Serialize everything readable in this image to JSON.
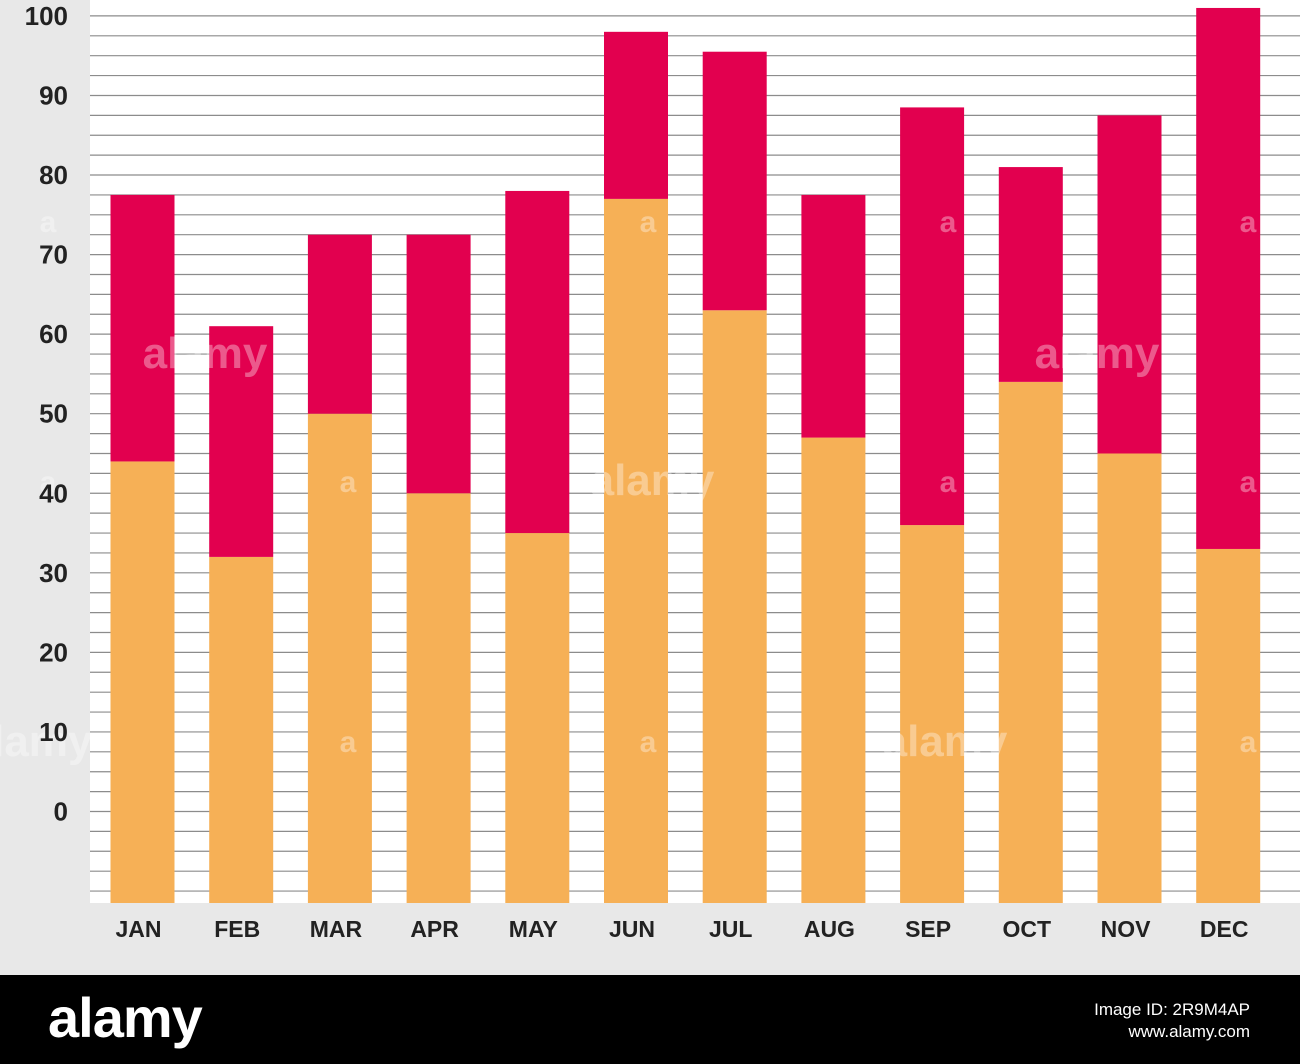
{
  "chart_data": {
    "type": "bar",
    "stacked": true,
    "categories": [
      "JAN",
      "FEB",
      "MAR",
      "APR",
      "MAY",
      "JUN",
      "JUL",
      "AUG",
      "SEP",
      "OCT",
      "NOV",
      "DEC"
    ],
    "series": [
      {
        "color": "#F6B056",
        "values": [
          44,
          32,
          50,
          40,
          35,
          77,
          63,
          47,
          36,
          54,
          45,
          33
        ]
      },
      {
        "color": "#E2004F",
        "values": [
          33.5,
          29,
          22.5,
          32.5,
          43,
          21,
          32.5,
          30.5,
          52.5,
          27,
          42.5,
          68
        ]
      }
    ],
    "yticks": [
      0,
      10,
      20,
      30,
      40,
      50,
      60,
      70,
      80,
      90,
      100
    ],
    "ylim": [
      -11.5,
      102
    ],
    "minor_grid_step": 2.5,
    "grid": true,
    "legend": "none",
    "title": "",
    "xlabel": "",
    "ylabel": ""
  },
  "watermark": {
    "word": "alamy",
    "letter": "a"
  },
  "footer": {
    "logo": "alamy",
    "id_lines": [
      "Image ID: 2R9M4AP",
      "www.alamy.com"
    ]
  },
  "colors": {
    "background": "#E8E8E8",
    "plot_background": "#FFFFFF",
    "grid": "#8C8C8C",
    "footer": "#000000"
  }
}
